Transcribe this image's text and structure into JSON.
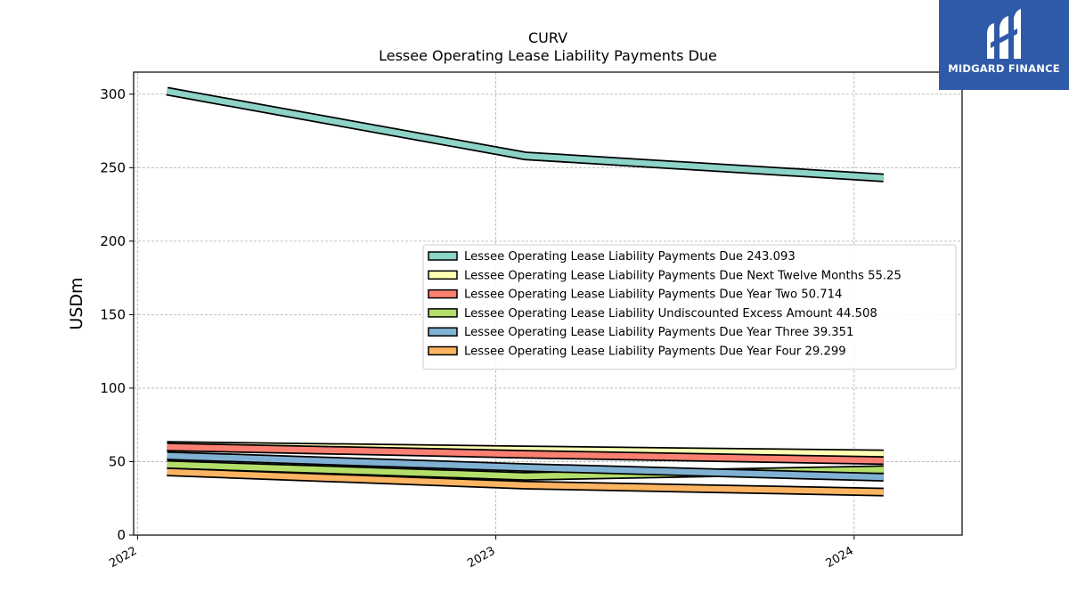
{
  "brand": {
    "name": "MIDGARD FINANCE",
    "color": "#2e5aa8"
  },
  "chart_data": {
    "type": "line",
    "title": "CURV",
    "subtitle": "Lessee Operating Lease Liability Payments Due",
    "ylabel": "USDm",
    "xlabel": "",
    "x_ticks": [
      "2022",
      "2023",
      "2024"
    ],
    "ylim": [
      0,
      315
    ],
    "yticks": [
      0,
      50,
      100,
      150,
      200,
      250,
      300
    ],
    "grid": true,
    "legend_position": "center-right",
    "x": [
      "2022-01-31",
      "2023-01-31",
      "2024-01-31"
    ],
    "series": [
      {
        "name": "Lessee Operating Lease Liability Payments Due",
        "legend": "Lessee Operating Lease Liability Payments Due  243.093",
        "color": "#8dd3c7",
        "values": [
          302.0,
          258.0,
          243.093
        ]
      },
      {
        "name": "Lessee Operating Lease Liability Payments Due Next Twelve Months",
        "legend": "Lessee Operating Lease Liability Payments Due Next Twelve Months  55.25",
        "color": "#ffffb3",
        "values": [
          61.0,
          58.0,
          55.25
        ]
      },
      {
        "name": "Lessee Operating Lease Liability Payments Due Year Two",
        "legend": "Lessee Operating Lease Liability Payments Due Year Two  50.714",
        "color": "#fb8072",
        "values": [
          60.0,
          55.0,
          50.714
        ]
      },
      {
        "name": "Lessee Operating Lease Liability Undiscounted Excess Amount",
        "legend": "Lessee Operating Lease Liability Undiscounted Excess Amount  44.508",
        "color": "#b3de69",
        "values": [
          48.0,
          40.0,
          44.508
        ]
      },
      {
        "name": "Lessee Operating Lease Liability Payments Due Year Three",
        "legend": "Lessee Operating Lease Liability Payments Due Year Three  39.351",
        "color": "#80b1d3",
        "values": [
          54.0,
          46.0,
          39.351
        ]
      },
      {
        "name": "Lessee Operating Lease Liability Payments Due Year Four",
        "legend": "Lessee Operating Lease Liability Payments Due Year Four  29.299",
        "color": "#fdb462",
        "values": [
          43.0,
          34.0,
          29.299
        ]
      }
    ]
  }
}
